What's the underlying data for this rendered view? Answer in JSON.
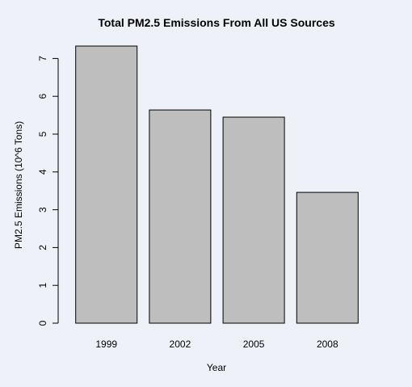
{
  "chart_data": {
    "type": "bar",
    "title": "Total PM2.5 Emissions From All US Sources",
    "xlabel": "Year",
    "ylabel": "PM2.5 Emissions (10^6 Tons)",
    "categories": [
      "1999",
      "2002",
      "2005",
      "2008"
    ],
    "values": [
      7.33,
      5.64,
      5.45,
      3.46
    ],
    "ylim": [
      0,
      7.33
    ],
    "yticks": [
      0,
      1,
      2,
      3,
      4,
      5,
      6,
      7
    ],
    "grid": false,
    "legend": "none",
    "bar_color": "#bebebe",
    "background": "#eef2f8"
  }
}
